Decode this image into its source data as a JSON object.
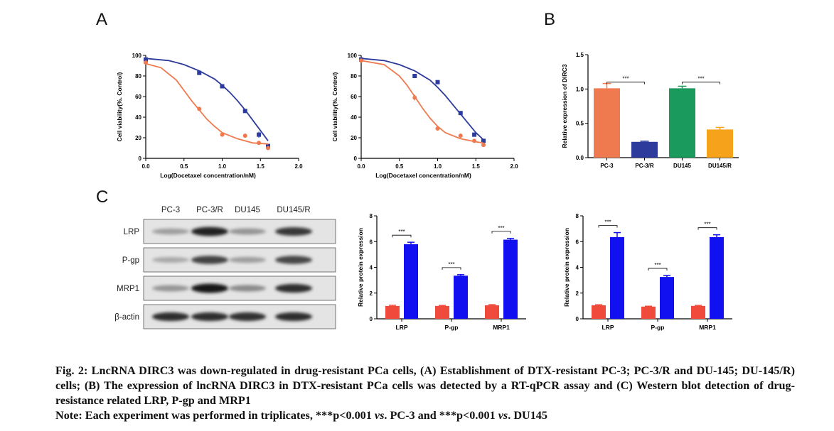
{
  "panels": {
    "a": "A",
    "b": "B",
    "c": "C"
  },
  "colors": {
    "blue": "#2c3b9c",
    "orange": "#f07a4f",
    "bar_red": "#f04a3c",
    "bar_blue": "#1010f0",
    "green": "#1a9a5c",
    "amber": "#f7a21b"
  },
  "chart_data": [
    {
      "type": "scatter",
      "xlabel": "Log(Docetaxel concentration/nM)",
      "ylabel": "Cell viability(%. Control)",
      "xlim": [
        0.0,
        2.0
      ],
      "ylim": [
        0,
        100
      ],
      "xticks": [
        "0.0",
        "0.5",
        "1.0",
        "1.5",
        "2.0"
      ],
      "yticks": [
        "0",
        "20",
        "40",
        "60",
        "80",
        "100"
      ],
      "series": [
        {
          "marker": "square",
          "color": "#2c3b9c",
          "x": [
            0.0,
            0.7,
            1.0,
            1.3,
            1.48,
            1.6
          ],
          "y": [
            96,
            83,
            70,
            46,
            23,
            12
          ],
          "err": [
            1,
            1,
            1,
            1,
            3,
            1
          ],
          "fit": [
            [
              0.0,
              97
            ],
            [
              0.3,
              95
            ],
            [
              0.5,
              91
            ],
            [
              0.7,
              85
            ],
            [
              0.9,
              77
            ],
            [
              1.0,
              71
            ],
            [
              1.1,
              64
            ],
            [
              1.2,
              56
            ],
            [
              1.3,
              47
            ],
            [
              1.4,
              37
            ],
            [
              1.5,
              27
            ],
            [
              1.6,
              17
            ]
          ]
        },
        {
          "marker": "circle",
          "color": "#f07a4f",
          "x": [
            0.0,
            0.7,
            1.0,
            1.3,
            1.48,
            1.6
          ],
          "y": [
            93,
            48,
            23,
            22,
            15,
            10
          ],
          "err": [
            2,
            2,
            1,
            2,
            1,
            1
          ],
          "fit": [
            [
              0.0,
              92
            ],
            [
              0.2,
              88
            ],
            [
              0.4,
              76
            ],
            [
              0.5,
              66
            ],
            [
              0.6,
              56
            ],
            [
              0.7,
              47
            ],
            [
              0.8,
              38
            ],
            [
              0.9,
              31
            ],
            [
              1.0,
              25
            ],
            [
              1.2,
              19
            ],
            [
              1.4,
              15
            ],
            [
              1.6,
              14
            ]
          ]
        }
      ]
    },
    {
      "type": "scatter",
      "xlabel": "Log(Docetaxel concentration/nM)",
      "ylabel": "Cell viability(%. Control)",
      "xlim": [
        0.0,
        2.0
      ],
      "ylim": [
        0,
        100
      ],
      "xticks": [
        "0.0",
        "0.5",
        "1.0",
        "1.5",
        "2.0"
      ],
      "yticks": [
        "0",
        "20",
        "40",
        "60",
        "80",
        "100"
      ],
      "series": [
        {
          "marker": "square",
          "color": "#2c3b9c",
          "x": [
            0.0,
            0.7,
            1.0,
            1.3,
            1.48,
            1.6
          ],
          "y": [
            96,
            80,
            74,
            44,
            23,
            17
          ],
          "err": [
            1,
            1,
            1,
            1,
            2,
            2
          ],
          "fit": [
            [
              0.0,
              97
            ],
            [
              0.3,
              95
            ],
            [
              0.5,
              91
            ],
            [
              0.7,
              85
            ],
            [
              0.9,
              76
            ],
            [
              1.0,
              69
            ],
            [
              1.1,
              61
            ],
            [
              1.2,
              52
            ],
            [
              1.3,
              43
            ],
            [
              1.4,
              34
            ],
            [
              1.5,
              25
            ],
            [
              1.6,
              18
            ]
          ]
        },
        {
          "marker": "circle",
          "color": "#f07a4f",
          "x": [
            0.0,
            0.7,
            1.0,
            1.3,
            1.48,
            1.6
          ],
          "y": [
            95,
            59,
            29,
            22,
            17,
            13
          ],
          "err": [
            1,
            3,
            1,
            2,
            2,
            1
          ],
          "fit": [
            [
              0.0,
              95
            ],
            [
              0.3,
              91
            ],
            [
              0.5,
              80
            ],
            [
              0.6,
              71
            ],
            [
              0.7,
              60
            ],
            [
              0.8,
              49
            ],
            [
              0.9,
              39
            ],
            [
              1.0,
              31
            ],
            [
              1.1,
              25
            ],
            [
              1.3,
              19
            ],
            [
              1.5,
              16
            ],
            [
              1.6,
              15
            ]
          ]
        }
      ]
    },
    {
      "type": "bar",
      "ylabel": "Relative expression of DIRC3",
      "categories": [
        "PC-3",
        "PC-3/R",
        "DU145",
        "DU145/R"
      ],
      "values": [
        1.01,
        0.23,
        1.01,
        0.41
      ],
      "errors": [
        0.07,
        0.01,
        0.03,
        0.03
      ],
      "colors": [
        "#f07a4f",
        "#2c3b9c",
        "#1a9a5c",
        "#f7a21b"
      ],
      "ylim": [
        0,
        1.5
      ],
      "yticks": [
        "0.0",
        "0.5",
        "1.0",
        "1.5"
      ],
      "annotations": [
        "***",
        "***"
      ]
    },
    {
      "type": "bar",
      "ylabel": "Relative protein expression",
      "categories": [
        "LRP",
        "P-gp",
        "MRP1"
      ],
      "series": [
        {
          "values": [
            1.0,
            1.0,
            1.05
          ],
          "errors": [
            0.05,
            0.04,
            0.05
          ],
          "color": "#f04a3c"
        },
        {
          "values": [
            5.8,
            3.35,
            6.15
          ],
          "errors": [
            0.15,
            0.08,
            0.1
          ],
          "color": "#1010f0"
        }
      ],
      "ylim": [
        0,
        8
      ],
      "yticks": [
        "0",
        "2",
        "4",
        "6",
        "8"
      ],
      "annotations": [
        "***",
        "***",
        "***"
      ]
    },
    {
      "type": "bar",
      "ylabel": "Relative protein expression",
      "categories": [
        "LRP",
        "P-gp",
        "MRP1"
      ],
      "series": [
        {
          "values": [
            1.05,
            0.95,
            1.0
          ],
          "errors": [
            0.04,
            0.03,
            0.04
          ],
          "color": "#f04a3c"
        },
        {
          "values": [
            6.35,
            3.25,
            6.35
          ],
          "errors": [
            0.35,
            0.12,
            0.18
          ],
          "color": "#1010f0"
        }
      ],
      "ylim": [
        0,
        8
      ],
      "yticks": [
        "0",
        "2",
        "4",
        "6",
        "8"
      ],
      "annotations": [
        "***",
        "***",
        "***"
      ]
    }
  ],
  "western": {
    "columns": [
      "PC-3",
      "PC-3/R",
      "DU145",
      "DU145/R"
    ],
    "rows": [
      "LRP",
      "P-gp",
      "MRP1",
      "β-actin"
    ],
    "intensity": [
      [
        0.35,
        0.95,
        0.4,
        0.85
      ],
      [
        0.3,
        0.8,
        0.35,
        0.78
      ],
      [
        0.4,
        1.0,
        0.45,
        0.9
      ],
      [
        0.9,
        0.9,
        0.88,
        0.9
      ]
    ]
  },
  "caption": {
    "line1": "Fig. 2: LncRNA DIRC3 was down-regulated in drug-resistant PCa cells, (A) Establishment of DTX-resistant PC-3; PC-3/R and DU-145; DU-145/R) cells; (B) The expression of lncRNA DIRC3 in DTX-resistant PCa cells was detected by a RT-qPCR assay and (C) Western blot detection of drug-resistance related LRP, P-gp and MRP1",
    "note_a": "Note: Each experiment was performed in triplicates, ***p<0.001 ",
    "vs1": "vs",
    "note_b": ". PC-3 and ***p<0.001 ",
    "vs2": "vs",
    "note_c": ". DU145"
  }
}
